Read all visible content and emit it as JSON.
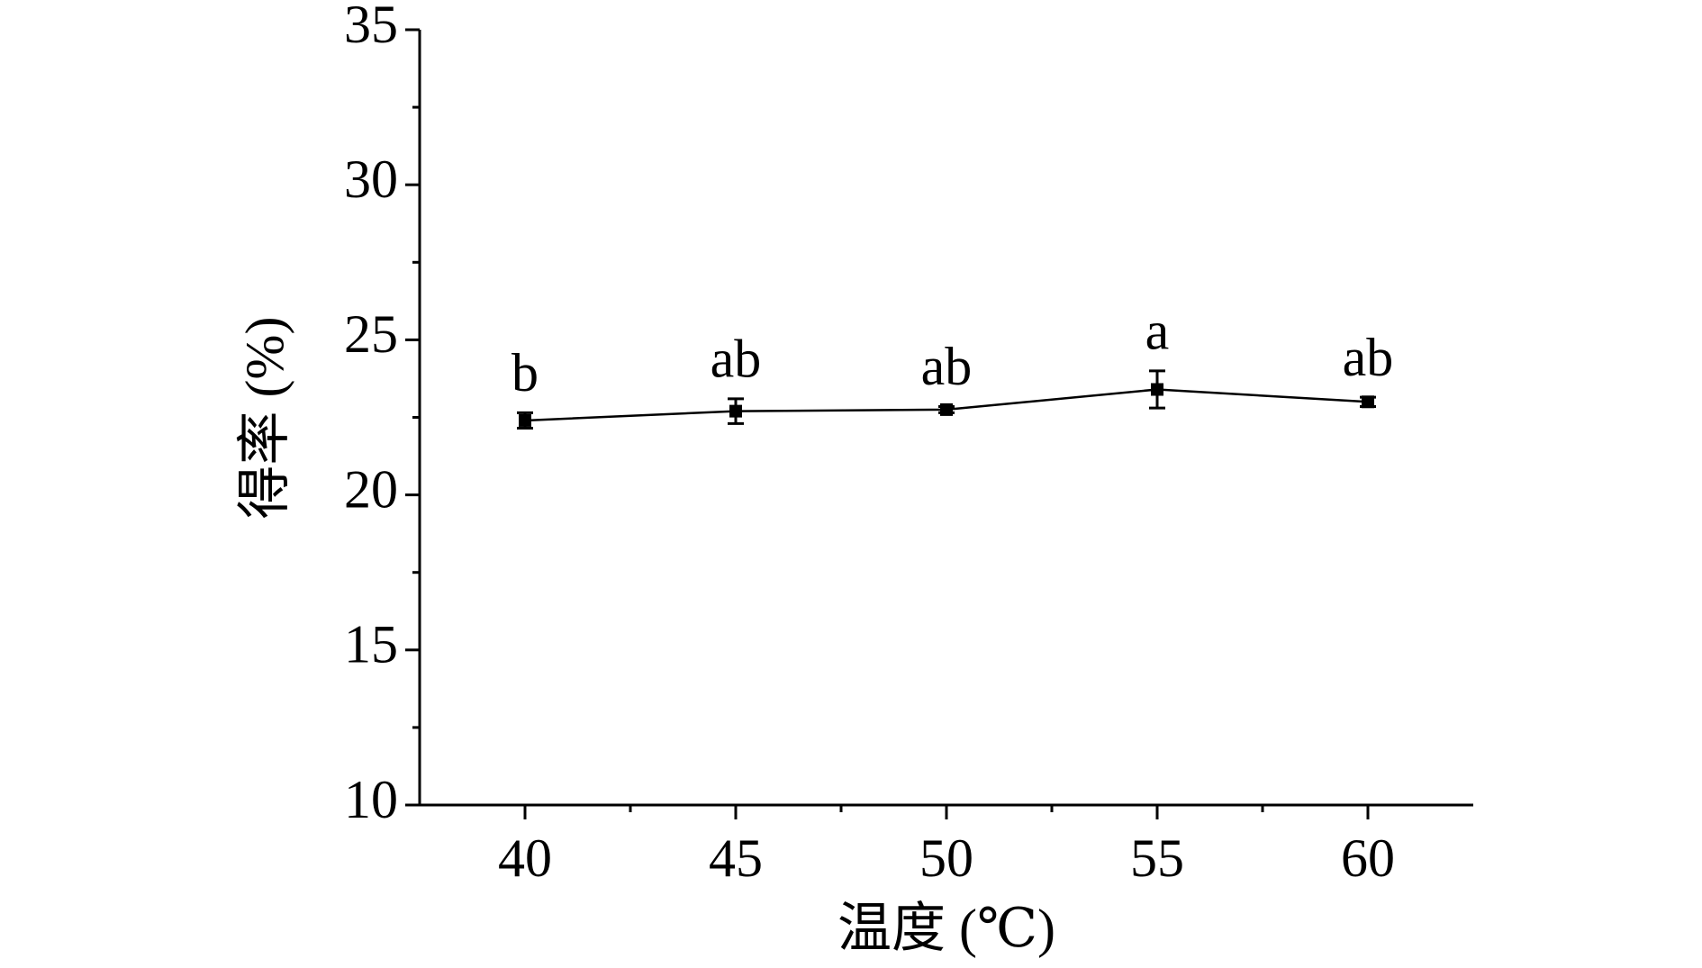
{
  "chart_data": {
    "type": "line",
    "x_label": "温度 (℃)",
    "y_label": "得率 (%)",
    "x": [
      40,
      45,
      50,
      55,
      60
    ],
    "series": [
      {
        "color": "#000000",
        "values": [
          22.4,
          22.7,
          22.75,
          23.4,
          23.0
        ],
        "errors": [
          0.25,
          0.4,
          0.1,
          0.6,
          0.15
        ],
        "annotations": [
          "b",
          "ab",
          "ab",
          "a",
          "ab"
        ]
      }
    ],
    "xlim": [
      37.5,
      62.5
    ],
    "xticks": [
      40,
      45,
      50,
      55,
      60
    ],
    "xminorticks": [
      42.5,
      47.5,
      52.5,
      57.5
    ],
    "ylim": [
      10,
      35
    ],
    "yticks": [
      10,
      15,
      20,
      25,
      30,
      35
    ],
    "yminorticks": [
      12.5,
      17.5,
      22.5,
      27.5,
      32.5
    ],
    "grid": false
  }
}
